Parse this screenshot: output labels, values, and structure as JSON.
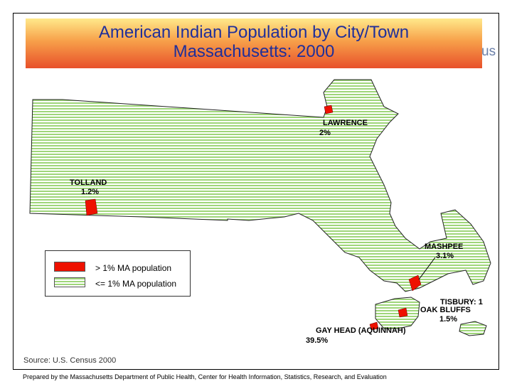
{
  "title_line1": "American Indian Population by City/Town",
  "title_line2": "Massachusetts: 2000",
  "title_stub": "us",
  "labels": {
    "lawrence": {
      "name": "LAWRENCE",
      "pct": "2%"
    },
    "tolland": {
      "name": "TOLLAND",
      "pct": "1.2%"
    },
    "mashpee": {
      "name": "MASHPEE",
      "pct": "3.1%"
    },
    "tisbury": {
      "name": "TISBURY: 1",
      "pct": ""
    },
    "oak_bluffs": {
      "name": "OAK BLUFFS",
      "pct": "1.5%"
    },
    "gay_head": {
      "name": "GAY HEAD (AQUINNAH)",
      "pct": "39.5%"
    }
  },
  "legend": {
    "high_label": "> 1% MA population",
    "low_label": "<= 1% MA population",
    "high_color": "#ee1100",
    "low_color": "#9fd67a"
  },
  "source": "Source: U.S. Census 2000",
  "footer": "Prepared by the Massachusetts Department of Public Health, Center for Health Information, Statistics, Research, and Evaluation"
}
